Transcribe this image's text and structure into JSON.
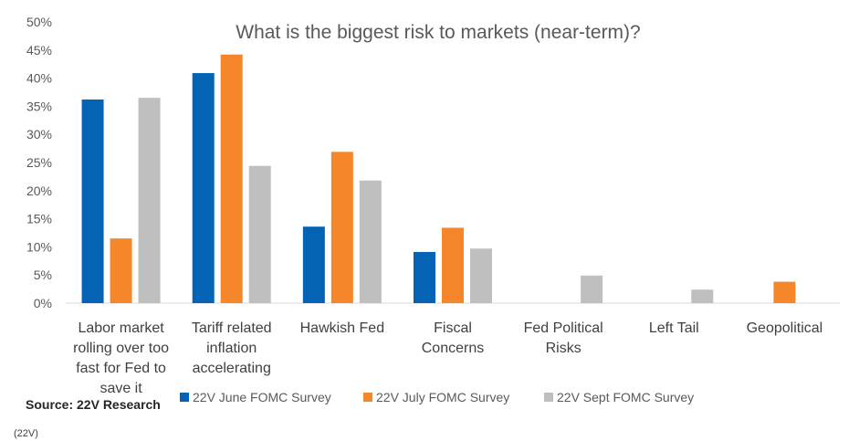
{
  "chart_data": {
    "type": "bar",
    "title": "What is the biggest risk to markets (near-term)?",
    "categories": [
      "Labor market rolling over too fast for Fed to save it",
      "Tariff related inflation accelerating",
      "Hawkish Fed",
      "Fiscal Concerns",
      "Fed Political Risks",
      "Left Tail",
      "Geopolitical"
    ],
    "category_lines": [
      [
        "Labor market",
        "rolling over too",
        "fast for Fed to",
        "save it"
      ],
      [
        "Tariff related",
        "inflation",
        "accelerating"
      ],
      [
        "Hawkish Fed"
      ],
      [
        "Fiscal",
        "Concerns"
      ],
      [
        "Fed Political",
        "Risks"
      ],
      [
        "Left Tail"
      ],
      [
        "Geopolitical"
      ]
    ],
    "series": [
      {
        "name": "22V June FOMC Survey",
        "color": "#0563b5",
        "values": [
          36.2,
          40.9,
          13.6,
          9.1,
          0,
          0,
          0
        ]
      },
      {
        "name": "22V July FOMC Survey",
        "color": "#f5862a",
        "values": [
          11.5,
          44.2,
          26.9,
          13.4,
          0,
          0,
          3.8
        ]
      },
      {
        "name": "22V Sept FOMC Survey",
        "color": "#bfbfbf",
        "values": [
          36.5,
          24.4,
          21.8,
          9.7,
          4.9,
          2.4,
          0
        ]
      }
    ],
    "y_ticks": [
      "0%",
      "5%",
      "10%",
      "15%",
      "20%",
      "25%",
      "30%",
      "35%",
      "40%",
      "45%",
      "50%"
    ],
    "ylim": [
      0,
      50
    ],
    "legend_position": "bottom",
    "grid": false
  },
  "source_label": "Source: 22V Research",
  "caption": "(22V)"
}
